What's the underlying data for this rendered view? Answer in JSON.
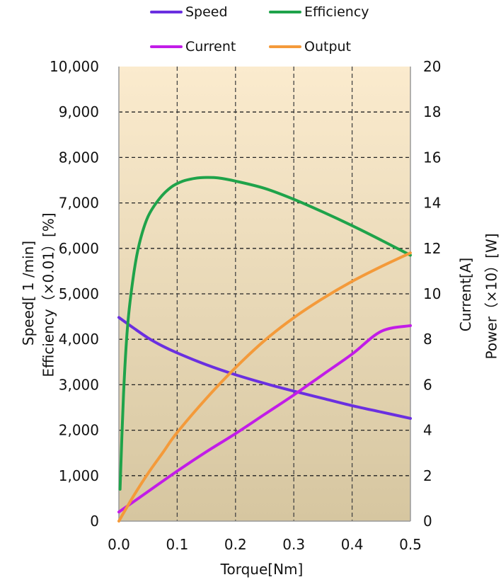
{
  "legend": [
    {
      "name": "Speed",
      "color": "#6a2fe0"
    },
    {
      "name": "Efficiency",
      "color": "#1fa34a"
    },
    {
      "name": "Current",
      "color": "#c21ce8"
    },
    {
      "name": "Output",
      "color": "#f49a3a"
    }
  ],
  "axes": {
    "xlabel": "Torque[Nm]",
    "ylabel_left_1": "Speed[ 1 /min]",
    "ylabel_left_2": "Efficiency（×0.01）[%]",
    "ylabel_right_1": "Current[A]",
    "ylabel_right_2": "Power（×10）[W]"
  },
  "chart_data": {
    "type": "line",
    "xlabel": "Torque[Nm]",
    "xlim": [
      0.0,
      0.5
    ],
    "x_ticks": [
      "0.0",
      "0.1",
      "0.2",
      "0.3",
      "0.4",
      "0.5"
    ],
    "ylim_left": [
      0,
      10000
    ],
    "y_left_ticks": [
      "0",
      "1,000",
      "2,000",
      "3,000",
      "4,000",
      "5,000",
      "6,000",
      "7,000",
      "8,000",
      "9,000",
      "10,000"
    ],
    "ylim_right": [
      0,
      20
    ],
    "y_right_ticks": [
      "0",
      "2",
      "4",
      "6",
      "8",
      "10",
      "12",
      "14",
      "16",
      "18",
      "20"
    ],
    "grid": true,
    "legend_position": "top",
    "background_gradient": [
      "#fbebce",
      "#d6c6a0"
    ],
    "series": [
      {
        "name": "Speed",
        "color": "#6a2fe0",
        "axis": "left",
        "x": [
          0.0,
          0.025,
          0.05,
          0.075,
          0.1,
          0.15,
          0.2,
          0.25,
          0.3,
          0.35,
          0.4,
          0.45,
          0.5
        ],
        "y": [
          4480,
          4250,
          4030,
          3850,
          3700,
          3440,
          3220,
          3030,
          2860,
          2700,
          2540,
          2400,
          2260
        ]
      },
      {
        "name": "Efficiency",
        "color": "#1fa34a",
        "axis": "left",
        "x": [
          0.002,
          0.008,
          0.015,
          0.025,
          0.035,
          0.05,
          0.07,
          0.09,
          0.11,
          0.13,
          0.15,
          0.17,
          0.2,
          0.25,
          0.3,
          0.35,
          0.4,
          0.45,
          0.5
        ],
        "y": [
          700,
          2800,
          4300,
          5400,
          6100,
          6700,
          7100,
          7350,
          7480,
          7540,
          7560,
          7550,
          7480,
          7320,
          7080,
          6800,
          6500,
          6180,
          5850
        ]
      },
      {
        "name": "Current",
        "color": "#c21ce8",
        "axis": "right",
        "x": [
          0.0,
          0.05,
          0.1,
          0.15,
          0.2,
          0.25,
          0.3,
          0.35,
          0.4,
          0.45,
          0.5
        ],
        "y": [
          0.4,
          1.3,
          2.2,
          3.05,
          3.85,
          4.7,
          5.55,
          6.45,
          7.35,
          8.35,
          8.6
        ]
      },
      {
        "name": "Output",
        "color": "#f49a3a",
        "axis": "right",
        "x": [
          0.0,
          0.025,
          0.05,
          0.075,
          0.1,
          0.15,
          0.2,
          0.25,
          0.3,
          0.35,
          0.4,
          0.45,
          0.5
        ],
        "y": [
          0.0,
          1.1,
          2.1,
          3.0,
          3.9,
          5.4,
          6.75,
          7.95,
          8.95,
          9.8,
          10.55,
          11.2,
          11.8
        ]
      }
    ]
  }
}
